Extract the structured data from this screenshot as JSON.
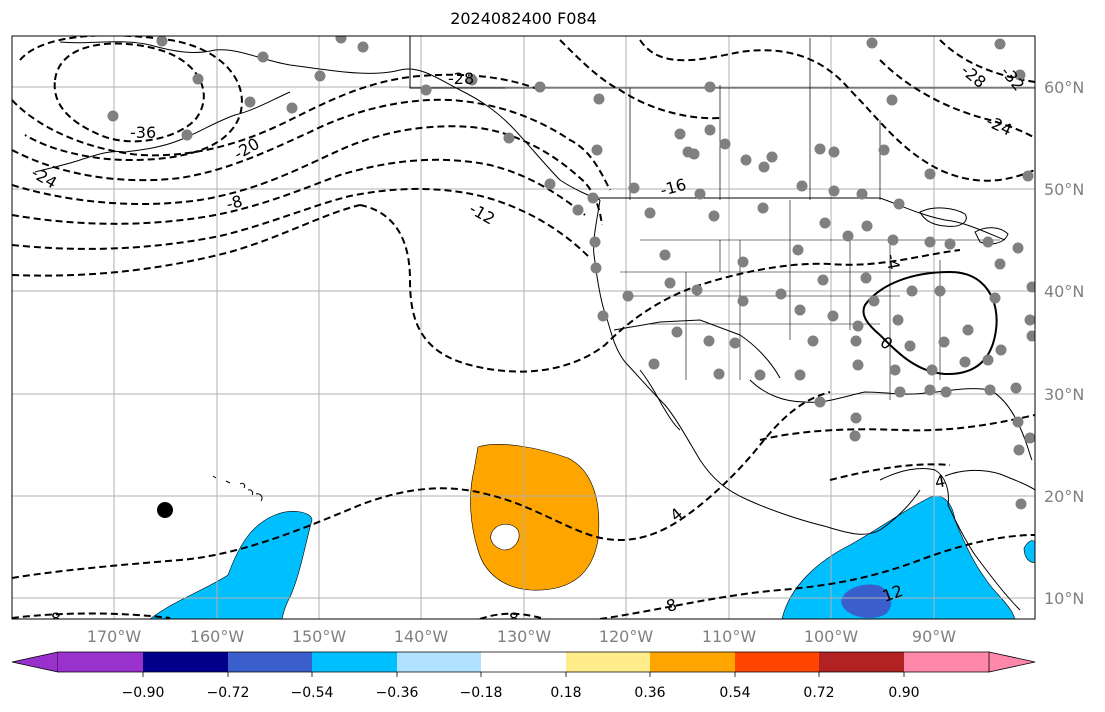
{
  "title": "2024082400 F084",
  "lat_labels": [
    "60°N",
    "50°N",
    "40°N",
    "30°N",
    "20°N",
    "10°N"
  ],
  "lon_labels": [
    "170°W",
    "160°W",
    "150°W",
    "140°W",
    "130°W",
    "120°W",
    "110°W",
    "100°W",
    "90°W"
  ],
  "contour_labels": [
    "-36",
    "-28",
    "-24",
    "-28",
    "-32",
    "-20",
    "-24",
    "-16",
    "-8",
    "-12",
    "-4",
    "4",
    "0",
    "4",
    "-8",
    "-8",
    "8",
    "12"
  ],
  "colorbar": {
    "tick_labels": [
      "−0.90",
      "−0.72",
      "−0.54",
      "−0.36",
      "−0.18",
      "0.18",
      "0.36",
      "0.54",
      "0.72",
      "0.90"
    ],
    "colors": [
      "#9932cc",
      "#00008b",
      "#3a5fcd",
      "#00bfff",
      "#b0e2ff",
      "#ffffff",
      "#ffec8b",
      "#ffa500",
      "#ff4500",
      "#b22222",
      "#ff88aa"
    ]
  },
  "colors": {
    "grid": "#b0b0b0",
    "station": "#808080",
    "coast": "#000000",
    "positive_area": "#ffa500",
    "negative_area": "#00bfff",
    "negative_core": "#3a5fcd"
  }
}
